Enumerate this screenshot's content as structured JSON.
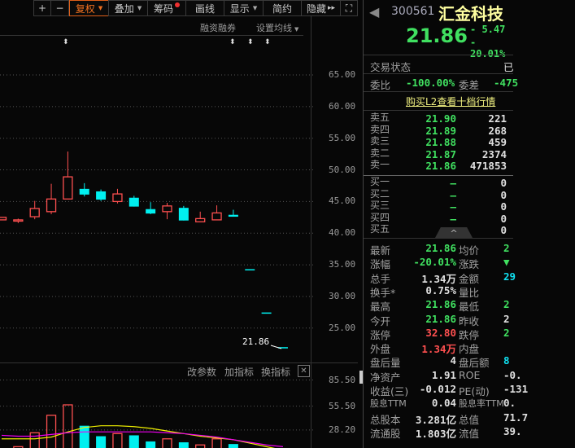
{
  "toolbar": {
    "plus": "+",
    "minus": "−",
    "fuquan": "复权",
    "diejia": "叠加",
    "chouma": "筹码",
    "huaxian": "画线",
    "xianshi": "显示",
    "jianyue": "简约",
    "yincang": "隐藏",
    "more": "▸▸",
    "fullscreen": "⛶"
  },
  "chart_header": {
    "margin": "融资融券",
    "ma_settings": "设置均线"
  },
  "price_axis": [
    "65.00",
    "60.00",
    "55.00",
    "50.00",
    "45.00",
    "40.00",
    "35.00",
    "30.00",
    "25.00"
  ],
  "last_price_label": "21.86",
  "volume_header": {
    "edit_params": "改参数",
    "add_indicator": "加指标",
    "switch_indicator": "换指标",
    "close": "✕"
  },
  "volume_axis": [
    "85.50",
    "55.50",
    "28.20"
  ],
  "colors": {
    "up": "#ff5050",
    "down": "#00f0f0",
    "ma1": "#f0f000",
    "ma2": "#f000f0",
    "accent": "#f07020"
  },
  "chart_data": {
    "type": "candlestick",
    "ylim": [
      20,
      67
    ],
    "candles": [
      {
        "o": 42.1,
        "h": 42.5,
        "l": 42.1,
        "c": 42.5,
        "v": 6
      },
      {
        "o": 41.9,
        "h": 42.3,
        "l": 41.6,
        "c": 42.1,
        "v": 9
      },
      {
        "o": 42.6,
        "h": 45.1,
        "l": 42.2,
        "c": 43.9,
        "v": 25
      },
      {
        "o": 43.4,
        "h": 47.8,
        "l": 43.0,
        "c": 45.4,
        "v": 45
      },
      {
        "o": 45.4,
        "h": 52.9,
        "l": 45.4,
        "c": 48.9,
        "v": 57
      },
      {
        "o": 47.0,
        "h": 47.9,
        "l": 45.8,
        "c": 46.1,
        "v": 33
      },
      {
        "o": 46.6,
        "h": 46.9,
        "l": 45.1,
        "c": 45.3,
        "v": 21
      },
      {
        "o": 45.0,
        "h": 47.0,
        "l": 44.7,
        "c": 46.2,
        "v": 24
      },
      {
        "o": 45.6,
        "h": 45.9,
        "l": 44.2,
        "c": 44.2,
        "v": 22
      },
      {
        "o": 43.8,
        "h": 44.9,
        "l": 43.0,
        "c": 43.1,
        "v": 15
      },
      {
        "o": 43.4,
        "h": 44.8,
        "l": 42.2,
        "c": 44.3,
        "v": 18
      },
      {
        "o": 44.0,
        "h": 44.3,
        "l": 42.0,
        "c": 42.0,
        "v": 14
      },
      {
        "o": 41.8,
        "h": 43.4,
        "l": 41.8,
        "c": 42.3,
        "v": 11
      },
      {
        "o": 42.1,
        "h": 44.4,
        "l": 42.1,
        "c": 43.2,
        "v": 18
      },
      {
        "o": 42.9,
        "h": 43.7,
        "l": 42.6,
        "c": 42.6,
        "v": 12
      },
      {
        "o": 34.18,
        "h": 34.18,
        "l": 34.18,
        "c": 34.18,
        "v": 0
      },
      {
        "o": 27.34,
        "h": 27.34,
        "l": 27.34,
        "c": 27.34,
        "v": 0
      },
      {
        "o": 21.86,
        "h": 21.86,
        "l": 21.86,
        "c": 21.86,
        "v": 0
      }
    ],
    "volume_ylim": [
      0,
      85.5
    ],
    "volume_ma1": [
      18,
      18,
      18,
      20,
      26,
      31,
      33,
      33,
      32,
      30,
      27,
      24,
      21,
      19,
      17,
      13,
      9,
      5
    ],
    "volume_ma2": [
      22,
      21,
      21,
      23,
      25,
      26,
      26,
      26,
      26,
      26,
      25,
      24,
      22,
      20,
      17,
      14,
      11,
      9
    ]
  },
  "quote": {
    "code": "300561",
    "name": "汇金科技",
    "price": "21.86",
    "change": "- 5.47",
    "change_pct": "- 20.01%"
  },
  "status": {
    "label": "交易状态",
    "value": "已"
  },
  "weibi": {
    "label": "委比",
    "value": "-100.00%",
    "label2": "委差",
    "value2": "-475"
  },
  "l2_link": "购买L2查看十档行情",
  "sell": [
    {
      "label": "卖五",
      "price": "21.90",
      "vol": "221"
    },
    {
      "label": "卖四",
      "price": "21.89",
      "vol": "268"
    },
    {
      "label": "卖三",
      "price": "21.88",
      "vol": "459"
    },
    {
      "label": "卖二",
      "price": "21.87",
      "vol": "2374"
    },
    {
      "label": "卖一",
      "price": "21.86",
      "vol": "471853"
    }
  ],
  "buy": [
    {
      "label": "买一",
      "price": "—",
      "vol": "0"
    },
    {
      "label": "买二",
      "price": "—",
      "vol": "0"
    },
    {
      "label": "买三",
      "price": "—",
      "vol": "0"
    },
    {
      "label": "买四",
      "price": "—",
      "vol": "0"
    },
    {
      "label": "买五",
      "price": "",
      "vol": "0"
    }
  ],
  "collapse": "^",
  "stats": [
    {
      "l1": "最新",
      "v1": "21.86",
      "c1": "g",
      "l2": "均价",
      "v2": "2",
      "c2": "g"
    },
    {
      "l1": "涨幅",
      "v1": "-20.01%",
      "c1": "g",
      "l2": "涨跌",
      "v2": "▼",
      "c2": "g"
    },
    {
      "l1": "总手",
      "v1": "1.34万",
      "c1": "w",
      "l2": "金额",
      "v2": "29",
      "c2": "c"
    },
    {
      "l1": "换手*",
      "v1": "0.75%",
      "c1": "w",
      "l2": "量比",
      "v2": "",
      "c2": "w"
    },
    {
      "l1": "最高",
      "v1": "21.86",
      "c1": "g",
      "l2": "最低",
      "v2": "2",
      "c2": "g"
    },
    {
      "l1": "今开",
      "v1": "21.86",
      "c1": "g",
      "l2": "昨收",
      "v2": "2",
      "c2": "w"
    },
    {
      "l1": "涨停",
      "v1": "32.80",
      "c1": "r",
      "l2": "跌停",
      "v2": "2",
      "c2": "g"
    },
    {
      "l1": "外盘",
      "v1": "1.34万",
      "c1": "r",
      "l2": "内盘",
      "v2": "",
      "c2": "g"
    },
    {
      "l1": "盘后量",
      "v1": "4",
      "c1": "w",
      "l2": "盘后额",
      "v2": "8",
      "c2": "c"
    },
    {
      "l1": "净资产",
      "v1": "1.91",
      "c1": "w",
      "l2": "ROE",
      "v2": "-0.",
      "c2": "w"
    },
    {
      "l1": "收益(三)",
      "v1": "-0.012",
      "c1": "w",
      "l2": "PE(动)",
      "v2": "-131",
      "c2": "w"
    },
    {
      "l1": "股息TTM",
      "v1": "0.04",
      "c1": "w",
      "l2": "股息率TTM",
      "v2": "0.",
      "c2": "w"
    },
    {
      "l1": "总股本",
      "v1": "3.281亿",
      "c1": "w",
      "l2": "总值",
      "v2": "71.7",
      "c2": "w"
    },
    {
      "l1": "流通股",
      "v1": "1.803亿",
      "c1": "w",
      "l2": "流值",
      "v2": "39.",
      "c2": "w"
    }
  ]
}
